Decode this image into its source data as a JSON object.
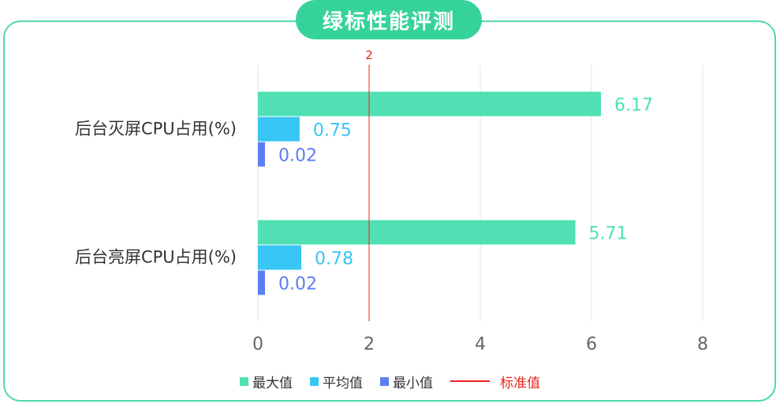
{
  "chart_data": {
    "type": "bar",
    "orientation": "horizontal",
    "title": "绿标性能评测",
    "categories": [
      "后台灭屏CPU占用(%)",
      "后台亮屏CPU占用(%)"
    ],
    "series": [
      {
        "name": "最大值",
        "color": "#50e0b4",
        "values": [
          6.17,
          5.71
        ]
      },
      {
        "name": "平均值",
        "color": "#38c6f4",
        "values": [
          0.75,
          0.78
        ]
      },
      {
        "name": "最小值",
        "color": "#5b7ff3",
        "values": [
          0.02,
          0.02
        ]
      }
    ],
    "value_labels": [
      [
        "6.17",
        "5.71"
      ],
      [
        "0.75",
        "0.78"
      ],
      [
        "0.02",
        "0.02"
      ]
    ],
    "xlim": [
      0,
      8
    ],
    "xticks": [
      "0",
      "2",
      "4",
      "6",
      "8"
    ],
    "grid": true,
    "reference_line": {
      "name": "标准值",
      "value": 2,
      "label": "2",
      "color": "#e8251e"
    },
    "legend_position": "bottom-center"
  }
}
